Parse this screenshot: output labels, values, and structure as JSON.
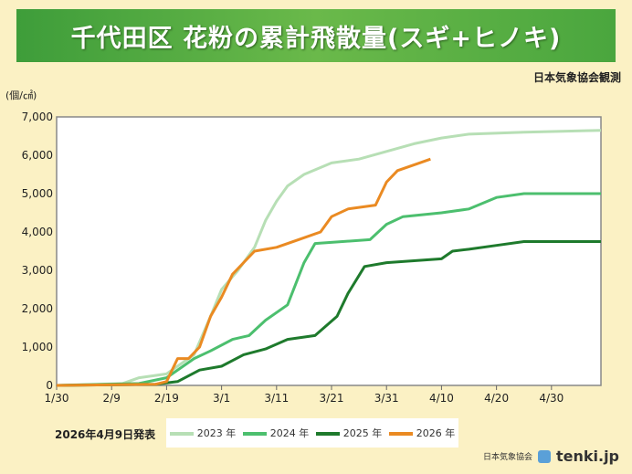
{
  "header": {
    "title": "千代田区 花粉の累計飛散量(スギ+ヒノキ)",
    "credit": "日本気象協会観測",
    "publish_date": "2026年4月9日発表",
    "footer_org": "日本気象協会",
    "footer_brand": "tenki.jp"
  },
  "chart_data": {
    "type": "line",
    "title": "千代田区 花粉の累計飛散量(スギ+ヒノキ)",
    "ylabel": "(個/㎠)",
    "xlabel": "",
    "ylim": [
      0,
      7000
    ],
    "yticks": [
      0,
      1000,
      2000,
      3000,
      4000,
      5000,
      6000,
      7000
    ],
    "ytick_labels": [
      "0",
      "1,000",
      "2,000",
      "3,000",
      "4,000",
      "5,000",
      "6,000",
      "7,000"
    ],
    "x_unit": "days since 1/30",
    "xlim": [
      0,
      99
    ],
    "xticks": [
      0,
      10,
      20,
      30,
      40,
      50,
      60,
      70,
      80,
      90
    ],
    "xtick_labels": [
      "1/30",
      "2/9",
      "2/19",
      "3/1",
      "3/11",
      "3/21",
      "3/31",
      "4/10",
      "4/20",
      "4/30"
    ],
    "grid": false,
    "legend_position": "bottom",
    "series": [
      {
        "name": "2023 年",
        "color": "#b7dfb5",
        "points": [
          [
            0,
            0
          ],
          [
            12,
            50
          ],
          [
            15,
            200
          ],
          [
            20,
            300
          ],
          [
            25,
            800
          ],
          [
            28,
            1800
          ],
          [
            30,
            2500
          ],
          [
            33,
            3000
          ],
          [
            36,
            3600
          ],
          [
            38,
            4300
          ],
          [
            40,
            4800
          ],
          [
            42,
            5200
          ],
          [
            45,
            5500
          ],
          [
            50,
            5800
          ],
          [
            55,
            5900
          ],
          [
            60,
            6100
          ],
          [
            65,
            6300
          ],
          [
            70,
            6450
          ],
          [
            75,
            6550
          ],
          [
            85,
            6600
          ],
          [
            99,
            6650
          ]
        ]
      },
      {
        "name": "2024 年",
        "color": "#4cbf6e",
        "points": [
          [
            0,
            0
          ],
          [
            15,
            50
          ],
          [
            20,
            200
          ],
          [
            25,
            700
          ],
          [
            28,
            900
          ],
          [
            32,
            1200
          ],
          [
            35,
            1300
          ],
          [
            38,
            1700
          ],
          [
            42,
            2100
          ],
          [
            45,
            3200
          ],
          [
            47,
            3700
          ],
          [
            52,
            3750
          ],
          [
            57,
            3800
          ],
          [
            60,
            4200
          ],
          [
            63,
            4400
          ],
          [
            70,
            4500
          ],
          [
            75,
            4600
          ],
          [
            80,
            4900
          ],
          [
            85,
            5000
          ],
          [
            99,
            5000
          ]
        ]
      },
      {
        "name": "2025 年",
        "color": "#1e7a2c",
        "points": [
          [
            0,
            0
          ],
          [
            18,
            30
          ],
          [
            22,
            100
          ],
          [
            26,
            400
          ],
          [
            30,
            500
          ],
          [
            34,
            800
          ],
          [
            38,
            950
          ],
          [
            42,
            1200
          ],
          [
            47,
            1300
          ],
          [
            51,
            1800
          ],
          [
            53,
            2400
          ],
          [
            56,
            3100
          ],
          [
            60,
            3200
          ],
          [
            65,
            3250
          ],
          [
            70,
            3300
          ],
          [
            72,
            3500
          ],
          [
            75,
            3550
          ],
          [
            80,
            3650
          ],
          [
            85,
            3750
          ],
          [
            99,
            3750
          ]
        ]
      },
      {
        "name": "2026 年",
        "color": "#ea8a22",
        "points": [
          [
            0,
            0
          ],
          [
            18,
            30
          ],
          [
            20,
            100
          ],
          [
            22,
            700
          ],
          [
            24,
            700
          ],
          [
            26,
            1000
          ],
          [
            28,
            1800
          ],
          [
            30,
            2300
          ],
          [
            32,
            2900
          ],
          [
            34,
            3200
          ],
          [
            36,
            3500
          ],
          [
            40,
            3600
          ],
          [
            44,
            3800
          ],
          [
            48,
            4000
          ],
          [
            50,
            4400
          ],
          [
            53,
            4600
          ],
          [
            58,
            4700
          ],
          [
            60,
            5300
          ],
          [
            62,
            5600
          ],
          [
            66,
            5800
          ],
          [
            68,
            5900
          ]
        ]
      }
    ]
  }
}
